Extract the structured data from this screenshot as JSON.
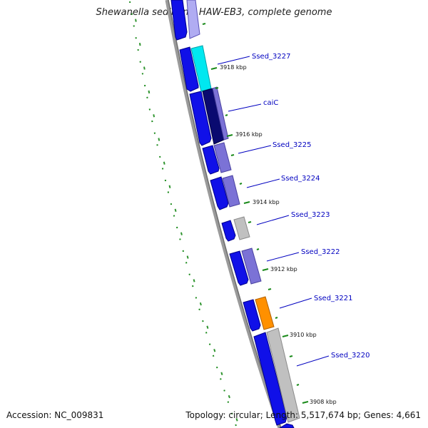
{
  "title": "Shewanella sediminis HAW-EB3, complete genome",
  "footer": {
    "accession": "Accession: NC_009831",
    "summary": "Topology: circular; Length: 5,517,674 bp; Genes: 4,661"
  },
  "colors": {
    "backbone": "#8c8c8c",
    "outer_strand_gene": "#1010e8",
    "gc_tick": "#1a8a1a",
    "label_line": "#0000c0",
    "cyan_gene": "#00e8f0",
    "orange_gene": "#ff9000",
    "grey_gene": "#c0c0c0",
    "lavender_gene": "#7b72d6",
    "navy_gene": "#0a0a70"
  },
  "scale_ticks": [
    {
      "label": "3918 kbp"
    },
    {
      "label": "3916 kbp"
    },
    {
      "label": "3914 kbp"
    },
    {
      "label": "3912 kbp"
    },
    {
      "label": "3910 kbp"
    },
    {
      "label": "3908 kbp"
    }
  ],
  "genes": [
    {
      "label": "Ssed_3227",
      "color": "cyan"
    },
    {
      "label": "caiC",
      "color": "navy"
    },
    {
      "label": "Ssed_3225",
      "color": "lavender"
    },
    {
      "label": "Ssed_3224",
      "color": "lavender"
    },
    {
      "label": "Ssed_3223",
      "color": "grey"
    },
    {
      "label": "Ssed_3222",
      "color": "lavender"
    },
    {
      "label": "Ssed_3221",
      "color": "orange"
    },
    {
      "label": "Ssed_3220",
      "color": "grey"
    }
  ]
}
